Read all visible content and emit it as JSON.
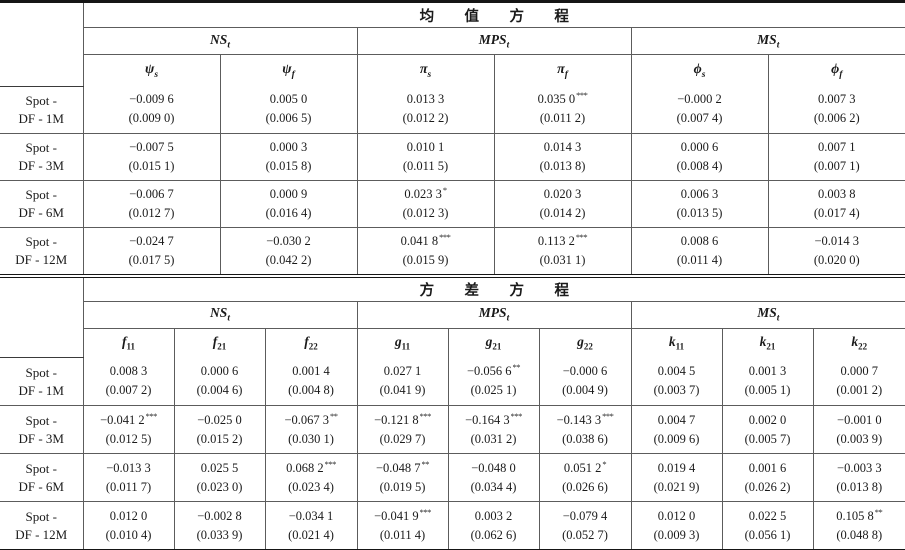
{
  "mean": {
    "title": "均值方程",
    "groups": [
      {
        "main": "NS",
        "sub": "t"
      },
      {
        "main": "MPS",
        "sub": "t"
      },
      {
        "main": "MS",
        "sub": "t"
      }
    ],
    "coef_headers": [
      {
        "main": "ψ",
        "sub": "s"
      },
      {
        "main": "ψ",
        "sub": "f"
      },
      {
        "main": "π",
        "sub": "s"
      },
      {
        "main": "π",
        "sub": "f"
      },
      {
        "main": "ϕ",
        "sub": "s"
      },
      {
        "main": "ϕ",
        "sub": "f"
      }
    ],
    "rows": [
      {
        "label_line1": "Spot -",
        "label_line2": "DF - 1M",
        "cells": [
          {
            "est": "−0.009 6",
            "stars": "",
            "se": "(0.009 0)"
          },
          {
            "est": "0.005 0",
            "stars": "",
            "se": "(0.006 5)"
          },
          {
            "est": "0.013 3",
            "stars": "",
            "se": "(0.012 2)"
          },
          {
            "est": "0.035 0",
            "stars": "***",
            "se": "(0.011 2)"
          },
          {
            "est": "−0.000 2",
            "stars": "",
            "se": "(0.007 4)"
          },
          {
            "est": "0.007 3",
            "stars": "",
            "se": "(0.006 2)"
          }
        ]
      },
      {
        "label_line1": "Spot -",
        "label_line2": "DF - 3M",
        "cells": [
          {
            "est": "−0.007 5",
            "stars": "",
            "se": "(0.015 1)"
          },
          {
            "est": "0.000 3",
            "stars": "",
            "se": "(0.015 8)"
          },
          {
            "est": "0.010 1",
            "stars": "",
            "se": "(0.011 5)"
          },
          {
            "est": "0.014 3",
            "stars": "",
            "se": "(0.013 8)"
          },
          {
            "est": "0.000 6",
            "stars": "",
            "se": "(0.008 4)"
          },
          {
            "est": "0.007 1",
            "stars": "",
            "se": "(0.007 1)"
          }
        ]
      },
      {
        "label_line1": "Spot -",
        "label_line2": "DF - 6M",
        "cells": [
          {
            "est": "−0.006 7",
            "stars": "",
            "se": "(0.012 7)"
          },
          {
            "est": "0.000 9",
            "stars": "",
            "se": "(0.016 4)"
          },
          {
            "est": "0.023 3",
            "stars": "*",
            "se": "(0.012 3)"
          },
          {
            "est": "0.020 3",
            "stars": "",
            "se": "(0.014 2)"
          },
          {
            "est": "0.006 3",
            "stars": "",
            "se": "(0.013 5)"
          },
          {
            "est": "0.003 8",
            "stars": "",
            "se": "(0.017 4)"
          }
        ]
      },
      {
        "label_line1": "Spot -",
        "label_line2": "DF - 12M",
        "cells": [
          {
            "est": "−0.024 7",
            "stars": "",
            "se": "(0.017 5)"
          },
          {
            "est": "−0.030 2",
            "stars": "",
            "se": "(0.042 2)"
          },
          {
            "est": "0.041 8",
            "stars": "***",
            "se": "(0.015 9)"
          },
          {
            "est": "0.113 2",
            "stars": "***",
            "se": "(0.031 1)"
          },
          {
            "est": "0.008 6",
            "stars": "",
            "se": "(0.011 4)"
          },
          {
            "est": "−0.014 3",
            "stars": "",
            "se": "(0.020 0)"
          }
        ]
      }
    ]
  },
  "variance": {
    "title": "方差方程",
    "groups": [
      {
        "main": "NS",
        "sub": "t"
      },
      {
        "main": "MPS",
        "sub": "t"
      },
      {
        "main": "MS",
        "sub": "t"
      }
    ],
    "coef_headers": [
      {
        "main": "f",
        "sub": "11"
      },
      {
        "main": "f",
        "sub": "21"
      },
      {
        "main": "f",
        "sub": "22"
      },
      {
        "main": "g",
        "sub": "11"
      },
      {
        "main": "g",
        "sub": "21"
      },
      {
        "main": "g",
        "sub": "22"
      },
      {
        "main": "k",
        "sub": "11"
      },
      {
        "main": "k",
        "sub": "21"
      },
      {
        "main": "k",
        "sub": "22"
      }
    ],
    "rows": [
      {
        "label_line1": "Spot -",
        "label_line2": "DF - 1M",
        "cells": [
          {
            "est": "0.008 3",
            "stars": "",
            "se": "(0.007 2)"
          },
          {
            "est": "0.000 6",
            "stars": "",
            "se": "(0.004 6)"
          },
          {
            "est": "0.001 4",
            "stars": "",
            "se": "(0.004 8)"
          },
          {
            "est": "0.027 1",
            "stars": "",
            "se": "(0.041 9)"
          },
          {
            "est": "−0.056 6",
            "stars": "**",
            "se": "(0.025 1)"
          },
          {
            "est": "−0.000 6",
            "stars": "",
            "se": "(0.004 9)"
          },
          {
            "est": "0.004 5",
            "stars": "",
            "se": "(0.003 7)"
          },
          {
            "est": "0.001 3",
            "stars": "",
            "se": "(0.005 1)"
          },
          {
            "est": "0.000 7",
            "stars": "",
            "se": "(0.001 2)"
          }
        ]
      },
      {
        "label_line1": "Spot -",
        "label_line2": "DF - 3M",
        "cells": [
          {
            "est": "−0.041 2",
            "stars": "***",
            "se": "(0.012 5)"
          },
          {
            "est": "−0.025 0",
            "stars": "",
            "se": "(0.015 2)"
          },
          {
            "est": "−0.067 3",
            "stars": "**",
            "se": "(0.030 1)"
          },
          {
            "est": "−0.121 8",
            "stars": "***",
            "se": "(0.029 7)"
          },
          {
            "est": "−0.164 3",
            "stars": "***",
            "se": "(0.031 2)"
          },
          {
            "est": "−0.143 3",
            "stars": "***",
            "se": "(0.038 6)"
          },
          {
            "est": "0.004 7",
            "stars": "",
            "se": "(0.009 6)"
          },
          {
            "est": "0.002 0",
            "stars": "",
            "se": "(0.005 7)"
          },
          {
            "est": "−0.001 0",
            "stars": "",
            "se": "(0.003 9)"
          }
        ]
      },
      {
        "label_line1": "Spot -",
        "label_line2": "DF - 6M",
        "cells": [
          {
            "est": "−0.013 3",
            "stars": "",
            "se": "(0.011 7)"
          },
          {
            "est": "0.025 5",
            "stars": "",
            "se": "(0.023 0)"
          },
          {
            "est": "0.068 2",
            "stars": "***",
            "se": "(0.023 4)"
          },
          {
            "est": "−0.048 7",
            "stars": "**",
            "se": "(0.019 5)"
          },
          {
            "est": "−0.048 0",
            "stars": "",
            "se": "(0.034 4)"
          },
          {
            "est": "0.051 2",
            "stars": "*",
            "se": "(0.026 6)"
          },
          {
            "est": "0.019 4",
            "stars": "",
            "se": "(0.021 9)"
          },
          {
            "est": "0.001 6",
            "stars": "",
            "se": "(0.026 2)"
          },
          {
            "est": "−0.003 3",
            "stars": "",
            "se": "(0.013 8)"
          }
        ]
      },
      {
        "label_line1": "Spot -",
        "label_line2": "DF - 12M",
        "cells": [
          {
            "est": "0.012 0",
            "stars": "",
            "se": "(0.010 4)"
          },
          {
            "est": "−0.002 8",
            "stars": "",
            "se": "(0.033 9)"
          },
          {
            "est": "−0.034 1",
            "stars": "",
            "se": "(0.021 4)"
          },
          {
            "est": "−0.041 9",
            "stars": "***",
            "se": "(0.011 4)"
          },
          {
            "est": "0.003 2",
            "stars": "",
            "se": "(0.062 6)"
          },
          {
            "est": "−0.079 4",
            "stars": "",
            "se": "(0.052 7)"
          },
          {
            "est": "0.012 0",
            "stars": "",
            "se": "(0.009 3)"
          },
          {
            "est": "0.022 5",
            "stars": "",
            "se": "(0.056 1)"
          },
          {
            "est": "0.105 8",
            "stars": "**",
            "se": "(0.048 8)"
          }
        ]
      }
    ]
  }
}
